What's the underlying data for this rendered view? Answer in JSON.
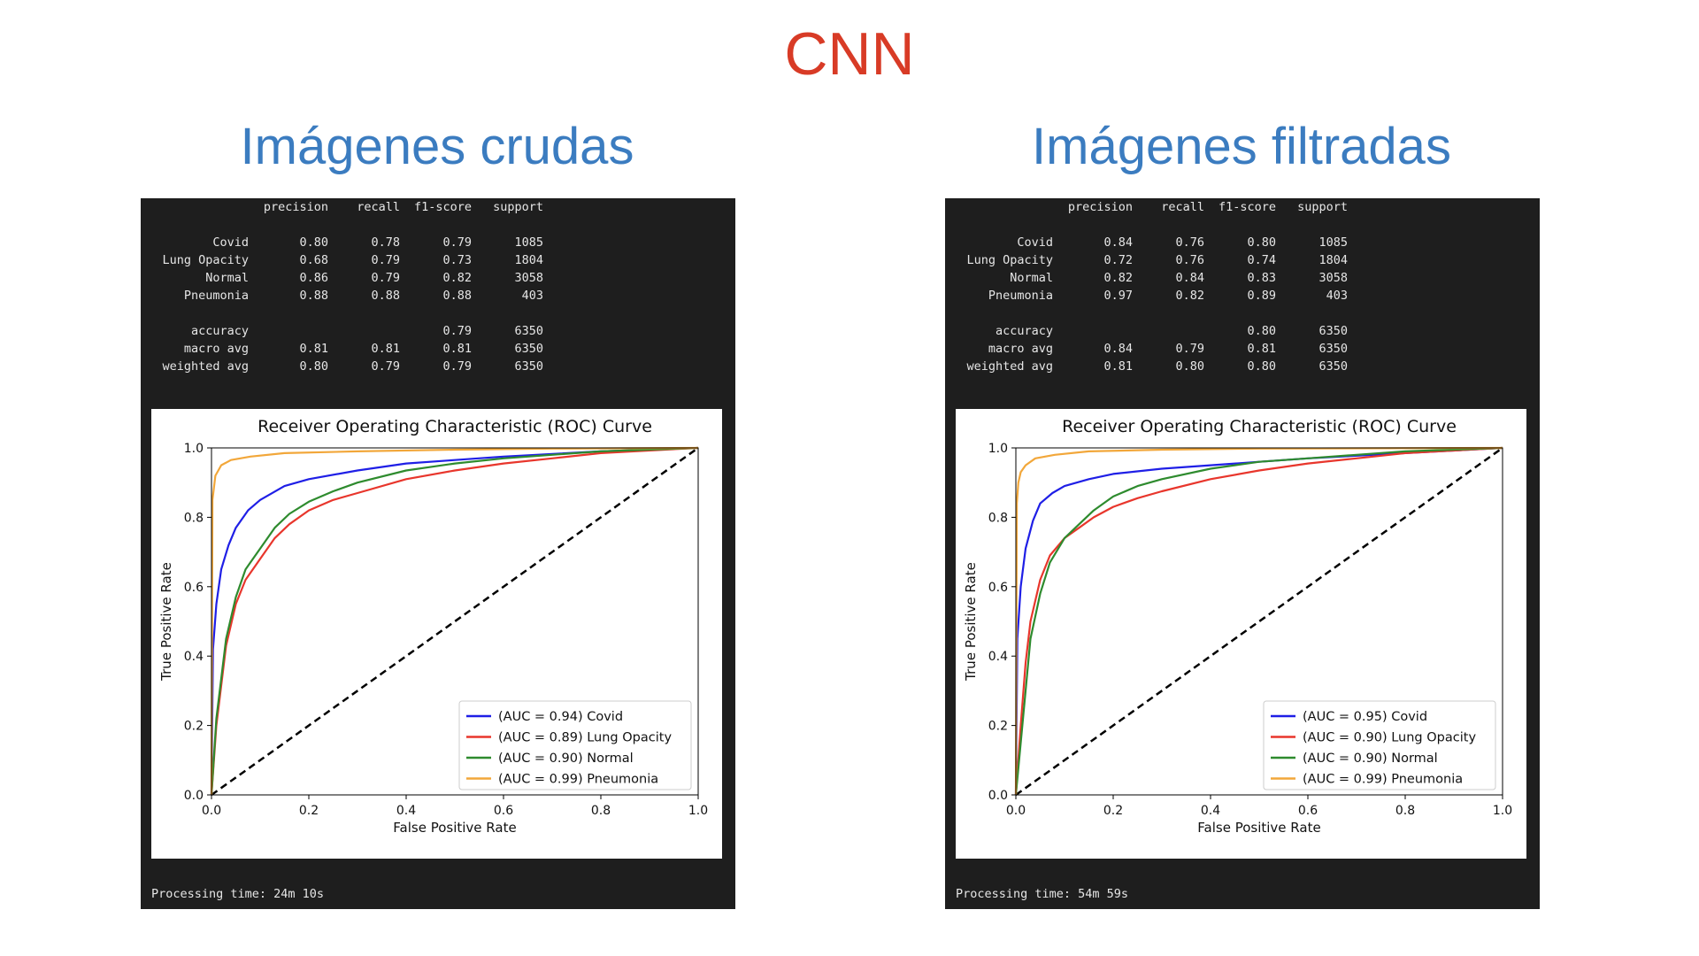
{
  "main_title": "CNN",
  "panels": [
    {
      "heading": "Imágenes crudas",
      "report": {
        "columns": [
          "precision",
          "recall",
          "f1-score",
          "support"
        ],
        "rows": [
          {
            "label": "Covid",
            "precision": "0.80",
            "recall": "0.78",
            "f1": "0.79",
            "support": "1085"
          },
          {
            "label": "Lung Opacity",
            "precision": "0.68",
            "recall": "0.79",
            "f1": "0.73",
            "support": "1804"
          },
          {
            "label": "Normal",
            "precision": "0.86",
            "recall": "0.79",
            "f1": "0.82",
            "support": "3058"
          },
          {
            "label": "Pneumonia",
            "precision": "0.88",
            "recall": "0.88",
            "f1": "0.88",
            "support": "403"
          }
        ],
        "summary": [
          {
            "label": "accuracy",
            "precision": "",
            "recall": "",
            "f1": "0.79",
            "support": "6350"
          },
          {
            "label": "macro avg",
            "precision": "0.81",
            "recall": "0.81",
            "f1": "0.81",
            "support": "6350"
          },
          {
            "label": "weighted avg",
            "precision": "0.80",
            "recall": "0.79",
            "f1": "0.79",
            "support": "6350"
          }
        ]
      },
      "processing_time": "Processing time: 24m 10s"
    },
    {
      "heading": "Imágenes filtradas",
      "report": {
        "columns": [
          "precision",
          "recall",
          "f1-score",
          "support"
        ],
        "rows": [
          {
            "label": "Covid",
            "precision": "0.84",
            "recall": "0.76",
            "f1": "0.80",
            "support": "1085"
          },
          {
            "label": "Lung Opacity",
            "precision": "0.72",
            "recall": "0.76",
            "f1": "0.74",
            "support": "1804"
          },
          {
            "label": "Normal",
            "precision": "0.82",
            "recall": "0.84",
            "f1": "0.83",
            "support": "3058"
          },
          {
            "label": "Pneumonia",
            "precision": "0.97",
            "recall": "0.82",
            "f1": "0.89",
            "support": "403"
          }
        ],
        "summary": [
          {
            "label": "accuracy",
            "precision": "",
            "recall": "",
            "f1": "0.80",
            "support": "6350"
          },
          {
            "label": "macro avg",
            "precision": "0.84",
            "recall": "0.79",
            "f1": "0.81",
            "support": "6350"
          },
          {
            "label": "weighted avg",
            "precision": "0.81",
            "recall": "0.80",
            "f1": "0.80",
            "support": "6350"
          }
        ]
      },
      "processing_time": "Processing time: 54m 59s"
    }
  ],
  "chart_data": [
    {
      "type": "line",
      "title": "Receiver Operating Characteristic (ROC) Curve",
      "xlabel": "False Positive Rate",
      "ylabel": "True Positive Rate",
      "xlim": [
        0,
        1
      ],
      "ylim": [
        0,
        1
      ],
      "xticks": [
        "0.0",
        "0.2",
        "0.4",
        "0.6",
        "0.8",
        "1.0"
      ],
      "yticks": [
        "0.0",
        "0.2",
        "0.4",
        "0.6",
        "0.8",
        "1.0"
      ],
      "legend_position": "lower-right",
      "series": [
        {
          "name": "(AUC = 0.94) Covid",
          "color": "#1f1fe6",
          "x": [
            0,
            0.003,
            0.01,
            0.02,
            0.035,
            0.05,
            0.075,
            0.1,
            0.15,
            0.2,
            0.3,
            0.4,
            0.5,
            0.6,
            0.8,
            1.0
          ],
          "y": [
            0,
            0.42,
            0.55,
            0.65,
            0.72,
            0.77,
            0.82,
            0.85,
            0.89,
            0.91,
            0.935,
            0.955,
            0.965,
            0.975,
            0.99,
            1.0
          ]
        },
        {
          "name": "(AUC = 0.89) Lung Opacity",
          "color": "#e8362c",
          "x": [
            0,
            0.01,
            0.03,
            0.05,
            0.07,
            0.1,
            0.13,
            0.16,
            0.2,
            0.25,
            0.3,
            0.4,
            0.5,
            0.6,
            0.7,
            0.8,
            1.0
          ],
          "y": [
            0,
            0.2,
            0.43,
            0.55,
            0.62,
            0.68,
            0.74,
            0.78,
            0.82,
            0.85,
            0.87,
            0.91,
            0.935,
            0.955,
            0.97,
            0.985,
            1.0
          ]
        },
        {
          "name": "(AUC = 0.90) Normal",
          "color": "#2e8b2e",
          "x": [
            0,
            0.01,
            0.03,
            0.05,
            0.07,
            0.1,
            0.13,
            0.16,
            0.2,
            0.25,
            0.3,
            0.4,
            0.5,
            0.6,
            0.7,
            0.8,
            1.0
          ],
          "y": [
            0,
            0.22,
            0.45,
            0.57,
            0.65,
            0.71,
            0.77,
            0.81,
            0.845,
            0.875,
            0.9,
            0.935,
            0.955,
            0.97,
            0.98,
            0.99,
            1.0
          ]
        },
        {
          "name": "(AUC = 0.99) Pneumonia",
          "color": "#f2a73a",
          "x": [
            0,
            0.002,
            0.008,
            0.02,
            0.04,
            0.08,
            0.15,
            0.3,
            0.5,
            0.7,
            1.0
          ],
          "y": [
            0,
            0.85,
            0.92,
            0.95,
            0.965,
            0.975,
            0.985,
            0.99,
            0.995,
            0.998,
            1.0
          ]
        }
      ]
    },
    {
      "type": "line",
      "title": "Receiver Operating Characteristic (ROC) Curve",
      "xlabel": "False Positive Rate",
      "ylabel": "True Positive Rate",
      "xlim": [
        0,
        1
      ],
      "ylim": [
        0,
        1
      ],
      "xticks": [
        "0.0",
        "0.2",
        "0.4",
        "0.6",
        "0.8",
        "1.0"
      ],
      "yticks": [
        "0.0",
        "0.2",
        "0.4",
        "0.6",
        "0.8",
        "1.0"
      ],
      "legend_position": "lower-right",
      "series": [
        {
          "name": "(AUC = 0.95) Covid",
          "color": "#1f1fe6",
          "x": [
            0,
            0.003,
            0.01,
            0.02,
            0.035,
            0.05,
            0.075,
            0.1,
            0.15,
            0.2,
            0.3,
            0.4,
            0.5,
            0.6,
            0.8,
            1.0
          ],
          "y": [
            0,
            0.45,
            0.6,
            0.71,
            0.79,
            0.84,
            0.87,
            0.89,
            0.91,
            0.925,
            0.94,
            0.95,
            0.96,
            0.97,
            0.985,
            1.0
          ]
        },
        {
          "name": "(AUC = 0.90) Lung Opacity",
          "color": "#e8362c",
          "x": [
            0,
            0.01,
            0.02,
            0.03,
            0.05,
            0.07,
            0.1,
            0.13,
            0.16,
            0.2,
            0.25,
            0.3,
            0.4,
            0.5,
            0.6,
            0.7,
            0.8,
            1.0
          ],
          "y": [
            0,
            0.2,
            0.38,
            0.5,
            0.62,
            0.69,
            0.74,
            0.77,
            0.8,
            0.83,
            0.855,
            0.875,
            0.91,
            0.935,
            0.955,
            0.97,
            0.985,
            1.0
          ]
        },
        {
          "name": "(AUC = 0.90) Normal",
          "color": "#2e8b2e",
          "x": [
            0,
            0.01,
            0.02,
            0.03,
            0.05,
            0.07,
            0.1,
            0.13,
            0.16,
            0.2,
            0.25,
            0.3,
            0.4,
            0.5,
            0.6,
            0.7,
            0.8,
            1.0
          ],
          "y": [
            0,
            0.15,
            0.3,
            0.45,
            0.58,
            0.67,
            0.74,
            0.78,
            0.82,
            0.86,
            0.89,
            0.91,
            0.94,
            0.96,
            0.97,
            0.98,
            0.99,
            1.0
          ]
        },
        {
          "name": "(AUC = 0.99) Pneumonia",
          "color": "#f2a73a",
          "x": [
            0,
            0.002,
            0.005,
            0.01,
            0.02,
            0.04,
            0.08,
            0.15,
            0.3,
            0.5,
            1.0
          ],
          "y": [
            0,
            0.84,
            0.9,
            0.93,
            0.95,
            0.97,
            0.98,
            0.99,
            0.995,
            0.998,
            1.0
          ]
        }
      ]
    }
  ]
}
